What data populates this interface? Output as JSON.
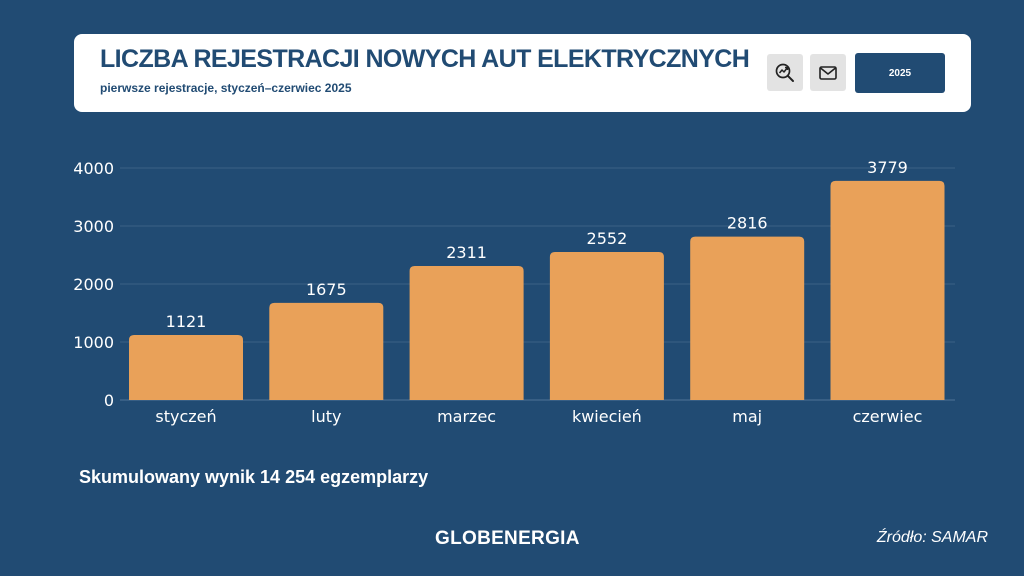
{
  "header": {
    "title": "LICZBA REJESTRACJI NOWYCH AUT ELEKTRYCZNYCH",
    "subtitle": "pierwsze rejestracje, styczeń–czerwiec 2025",
    "search_icon": "search-trend-icon",
    "mail_icon": "mail-icon",
    "year_button_label": "2025"
  },
  "colors": {
    "background": "#214b73",
    "bar": "#e9a159",
    "text": "#ffffff",
    "header_text": "#214b73"
  },
  "chart_data": {
    "type": "bar",
    "categories": [
      "styczeń",
      "luty",
      "marzec",
      "kwiecień",
      "maj",
      "czerwiec"
    ],
    "values": [
      1121,
      1675,
      2311,
      2552,
      2816,
      3779
    ],
    "title": "LICZBA REJESTRACJI NOWYCH AUT ELEKTRYCZNYCH",
    "subtitle": "pierwsze rejestracje, styczeń–czerwiec 2025",
    "xlabel": "",
    "ylabel": "",
    "ylim": [
      0,
      4000
    ],
    "yticks": [
      0,
      1000,
      2000,
      3000,
      4000
    ],
    "grid": true,
    "data_labels": true
  },
  "footer": {
    "summary": "Skumulowany wynik 14 254 egzemplarzy",
    "brand": "GLOBENERGIA",
    "source": "Źródło: SAMAR"
  }
}
